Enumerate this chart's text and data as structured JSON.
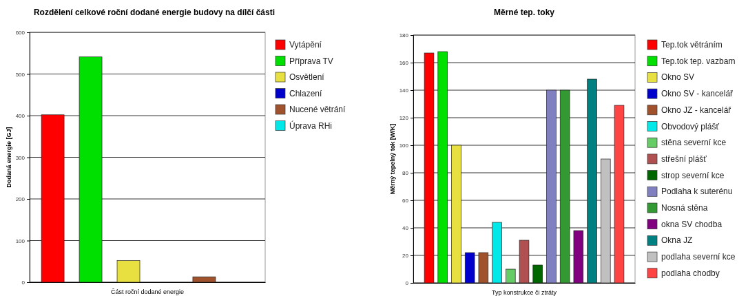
{
  "chart_data": [
    {
      "type": "bar",
      "title": "Rozdělení celkové roční dodané energie budovy na dílčí části",
      "xlabel": "Část roční dodané energie",
      "ylabel": "Dodaná energie [GJ]",
      "categories": [
        null
      ],
      "ylim": [
        0,
        600
      ],
      "yticks": [
        0,
        100,
        200,
        300,
        400,
        500,
        600
      ],
      "grid": "y",
      "legend": "right",
      "series": [
        {
          "name": "Vytápění",
          "color": "#ff0000",
          "values": [
            402
          ]
        },
        {
          "name": "Příprava TV",
          "color": "#00e000",
          "values": [
            541
          ]
        },
        {
          "name": "Osvětlení",
          "color": "#e8e040",
          "values": [
            52
          ]
        },
        {
          "name": "Chlazení",
          "color": "#0000cc",
          "values": [
            0
          ]
        },
        {
          "name": "Nucené větrání",
          "color": "#a0522d",
          "values": [
            13
          ]
        },
        {
          "name": "Úprava RHi",
          "color": "#00e8e8",
          "values": [
            0
          ]
        }
      ]
    },
    {
      "type": "bar",
      "title": "Měrné tep. toky",
      "xlabel": "Typ konstrukce či ztráty",
      "ylabel": "Měrný tepelný tok [W/K]",
      "categories": [
        null
      ],
      "ylim": [
        0,
        180
      ],
      "yticks": [
        0,
        20,
        40,
        60,
        80,
        100,
        120,
        140,
        160,
        180
      ],
      "grid": "y",
      "legend": "right",
      "series": [
        {
          "name": "Tep.tok větráním",
          "color": "#ff0000",
          "values": [
            167
          ]
        },
        {
          "name": "Tep.tok tep. vazbam",
          "color": "#00e000",
          "values": [
            168
          ]
        },
        {
          "name": "Okno SV",
          "color": "#e8e040",
          "values": [
            100
          ]
        },
        {
          "name": "Okno SV - kancelář",
          "color": "#0000cc",
          "values": [
            22
          ]
        },
        {
          "name": "Okno JZ - kancelář",
          "color": "#a0522d",
          "values": [
            22
          ]
        },
        {
          "name": "Obvodový plášť",
          "color": "#00e8e8",
          "values": [
            44
          ]
        },
        {
          "name": "stěna severní kce",
          "color": "#66cc66",
          "values": [
            10
          ]
        },
        {
          "name": "střešní plášť",
          "color": "#b05050",
          "values": [
            31
          ]
        },
        {
          "name": "strop severní kce",
          "color": "#006600",
          "values": [
            13
          ]
        },
        {
          "name": "Podlaha k suterénu",
          "color": "#8080c0",
          "values": [
            140
          ]
        },
        {
          "name": "Nosná stěna",
          "color": "#339933",
          "values": [
            140
          ]
        },
        {
          "name": "okna SV chodba",
          "color": "#800080",
          "values": [
            38
          ]
        },
        {
          "name": "Okna JZ",
          "color": "#008080",
          "values": [
            148
          ]
        },
        {
          "name": "podlaha severní kce",
          "color": "#c0c0c0",
          "values": [
            90
          ]
        },
        {
          "name": "podlaha chodby",
          "color": "#ff4444",
          "values": [
            129
          ]
        }
      ]
    }
  ]
}
